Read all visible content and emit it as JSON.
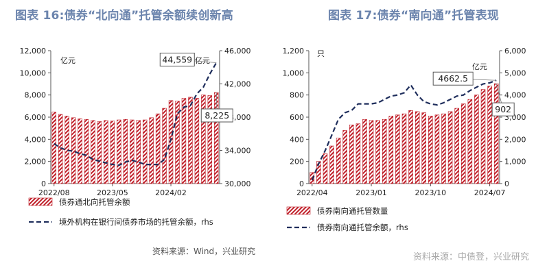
{
  "chart_data": [
    {
      "type": "bar",
      "title": "图表 16:债券“北向通”托管余额续创新高",
      "left_unit": "亿元",
      "right_unit": "亿元",
      "ylim": [
        0,
        12000
      ],
      "y_ticks": [
        "0",
        "2,000",
        "4,000",
        "6,000",
        "8,000",
        "10,000",
        "12,000"
      ],
      "y2lim": [
        30000,
        46000
      ],
      "y2_ticks": [
        "30,000",
        "34,000",
        "38,000",
        "42,000",
        "46,000"
      ],
      "x_ticks": [
        {
          "index": 0,
          "label": "2022/08"
        },
        {
          "index": 9,
          "label": "2023/05"
        },
        {
          "index": 18,
          "label": "2024/02"
        }
      ],
      "series": [
        {
          "name": "债券通北向托管余额",
          "kind": "bar",
          "axis": "left",
          "values": [
            6450,
            6250,
            6100,
            5950,
            5850,
            5800,
            5700,
            5600,
            5700,
            5650,
            5750,
            5800,
            5750,
            5700,
            5750,
            5950,
            6300,
            6800,
            7500,
            7450,
            7700,
            7800,
            7700,
            8000,
            7950,
            8225
          ]
        },
        {
          "name": "境外机构在银行间债券市场的托管余额，rhs",
          "kind": "line",
          "axis": "right",
          "values": [
            34800,
            34300,
            34000,
            33900,
            33600,
            33400,
            32900,
            32700,
            32500,
            32300,
            32200,
            32600,
            32800,
            32600,
            32300,
            32300,
            32300,
            32900,
            35300,
            38400,
            39200,
            39400,
            40800,
            41600,
            43200,
            44559
          ]
        }
      ],
      "annotations": [
        {
          "text": "44,559"
        },
        {
          "text": "8,225"
        }
      ]
    },
    {
      "type": "bar",
      "title": "图表 17:债券“南向通”托管表现",
      "left_unit": "只",
      "right_unit": "亿元",
      "ylim": [
        0,
        1200
      ],
      "y_ticks": [
        "0",
        "200",
        "400",
        "600",
        "800",
        "1,000",
        "1,200"
      ],
      "y2lim": [
        0,
        6000
      ],
      "y2_ticks": [
        "0",
        "1,000",
        "2,000",
        "3,000",
        "4,000",
        "5,000",
        "6,000"
      ],
      "x_ticks": [
        {
          "index": 0,
          "label": "2022/04"
        },
        {
          "index": 9,
          "label": "2023/01"
        },
        {
          "index": 18,
          "label": "2023/10"
        },
        {
          "index": 27,
          "label": "2024/07"
        }
      ],
      "series": [
        {
          "name": "债券南向通托管数量",
          "kind": "bar",
          "axis": "left",
          "values": [
            100,
            200,
            270,
            340,
            410,
            480,
            530,
            540,
            580,
            570,
            570,
            580,
            610,
            620,
            630,
            660,
            650,
            640,
            610,
            620,
            630,
            650,
            680,
            720,
            760,
            800,
            850,
            880,
            902
          ]
        },
        {
          "name": "债券南向通托管余额，rhs",
          "kind": "line",
          "axis": "right",
          "values": [
            150,
            900,
            1500,
            2200,
            2900,
            3200,
            3300,
            3600,
            3600,
            3600,
            3650,
            3800,
            3950,
            4000,
            4100,
            4450,
            4000,
            3700,
            3600,
            3550,
            3650,
            3800,
            3950,
            4000,
            4200,
            4350,
            4500,
            4550,
            4662.5
          ]
        }
      ],
      "annotations": [
        {
          "text": "4662.5"
        },
        {
          "text": "902"
        }
      ]
    }
  ],
  "footer": {
    "source": "资料来源：Wind，兴业研究",
    "watermark": "资料来源：中债登，兴业研究"
  },
  "colors": {
    "title": "#6b84ad",
    "bar_stripe": "#c0202a",
    "line": "#1f2e5c"
  }
}
